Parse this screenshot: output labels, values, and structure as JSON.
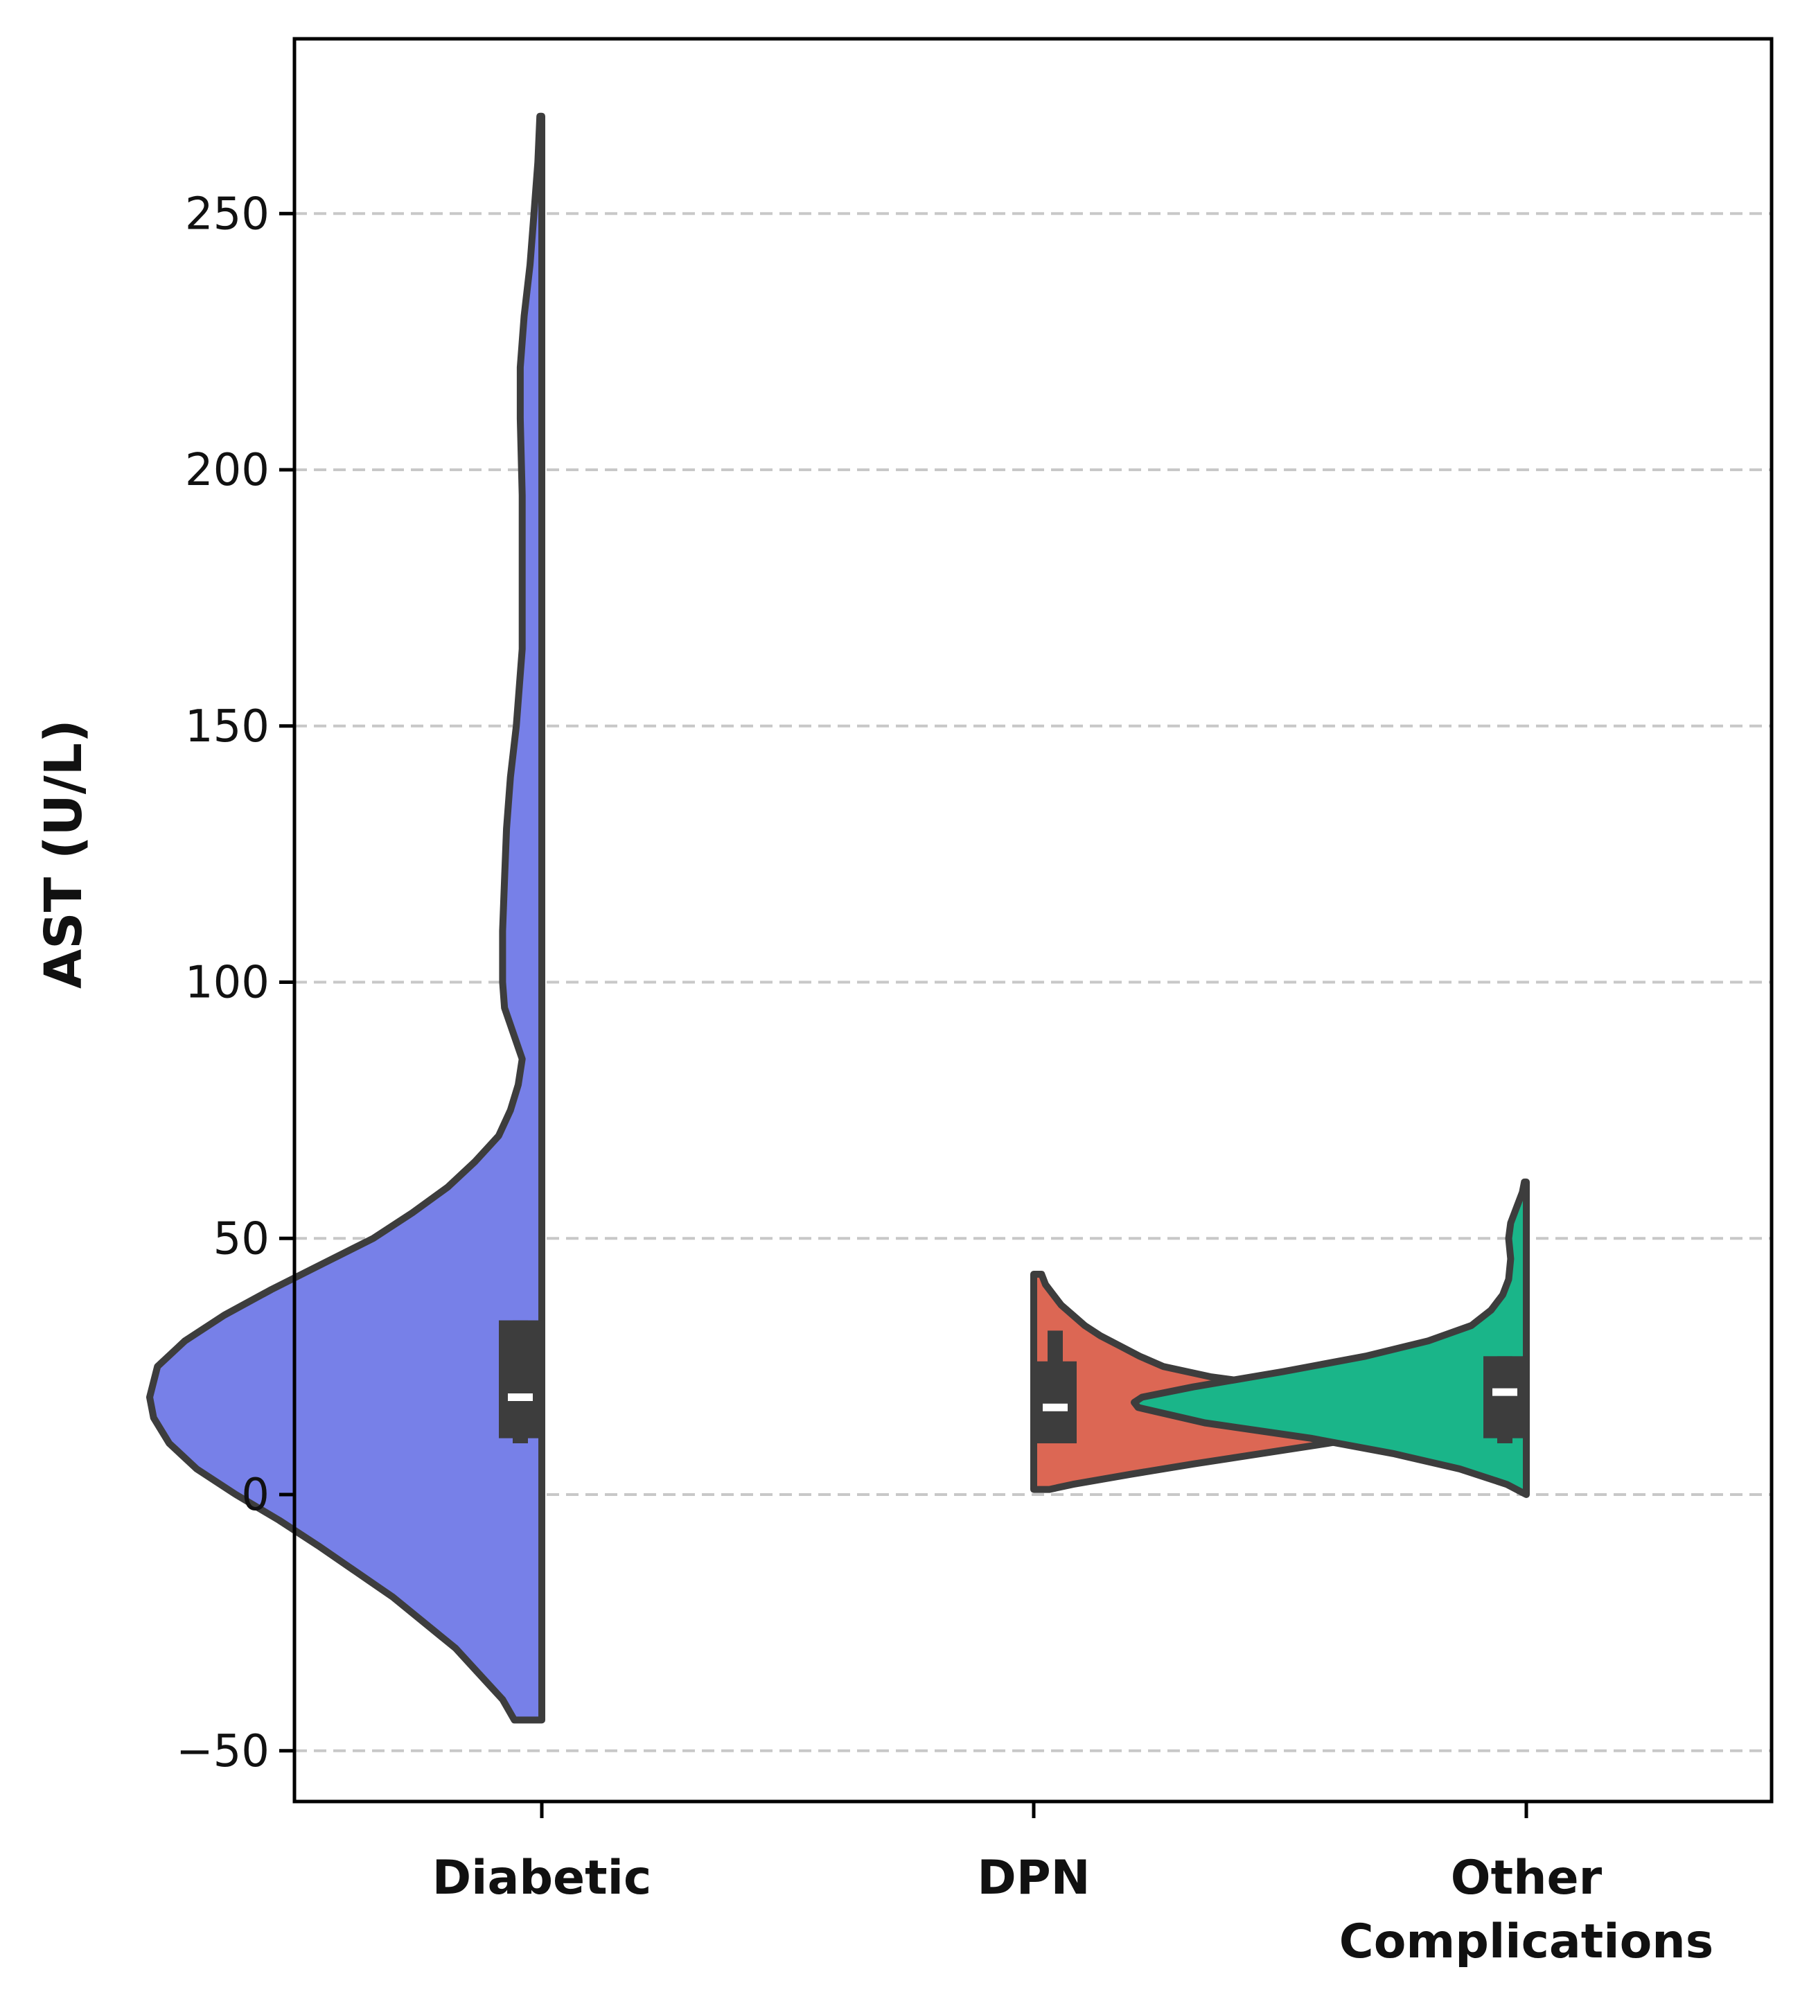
{
  "chart_data": {
    "type": "violin",
    "title": "",
    "xlabel": "",
    "ylabel": "AST (U/L)",
    "ylim": [
      -60,
      285
    ],
    "yticks": [
      -50,
      0,
      50,
      100,
      150,
      200,
      250
    ],
    "ytick_labels": [
      "−50",
      "0",
      "50",
      "100",
      "150",
      "200",
      "250"
    ],
    "grid": "horizontal dashed",
    "categories": [
      "Diabetic",
      "DPN",
      "Other Complications"
    ],
    "category_labels": [
      [
        "Diabetic"
      ],
      [
        "DPN"
      ],
      [
        "Other",
        "Complications"
      ]
    ],
    "series": [
      {
        "category": "Diabetic",
        "color": "#7780e8",
        "side": "left",
        "range": [
          -44,
          269
        ],
        "box": {
          "q1": 11,
          "median": 19,
          "q3": 34,
          "whisker_low": 10,
          "whisker_high": 34
        },
        "density_profile": [
          [
            -44,
            0.07
          ],
          [
            -40,
            0.1
          ],
          [
            -30,
            0.22
          ],
          [
            -20,
            0.38
          ],
          [
            -10,
            0.57
          ],
          [
            -5,
            0.67
          ],
          [
            0,
            0.78
          ],
          [
            5,
            0.88
          ],
          [
            10,
            0.95
          ],
          [
            15,
            0.99
          ],
          [
            19,
            1.0
          ],
          [
            25,
            0.98
          ],
          [
            30,
            0.91
          ],
          [
            35,
            0.81
          ],
          [
            40,
            0.69
          ],
          [
            45,
            0.56
          ],
          [
            50,
            0.43
          ],
          [
            55,
            0.33
          ],
          [
            60,
            0.24
          ],
          [
            65,
            0.17
          ],
          [
            70,
            0.11
          ],
          [
            75,
            0.08
          ],
          [
            80,
            0.06
          ],
          [
            85,
            0.05
          ],
          [
            95,
            0.095
          ],
          [
            100,
            0.1
          ],
          [
            110,
            0.1
          ],
          [
            120,
            0.095
          ],
          [
            130,
            0.09
          ],
          [
            140,
            0.08
          ],
          [
            150,
            0.065
          ],
          [
            165,
            0.05
          ],
          [
            180,
            0.05
          ],
          [
            195,
            0.05
          ],
          [
            210,
            0.055
          ],
          [
            220,
            0.055
          ],
          [
            230,
            0.045
          ],
          [
            240,
            0.03
          ],
          [
            250,
            0.02
          ],
          [
            260,
            0.01
          ],
          [
            269,
            0.005
          ]
        ]
      },
      {
        "category": "DPN",
        "color": "#dc6754",
        "side": "right",
        "range": [
          1,
          43
        ],
        "box": {
          "q1": 10,
          "median": 17,
          "q3": 26,
          "whisker_low": 10,
          "whisker_high": 32
        },
        "density_profile": [
          [
            1,
            0.04
          ],
          [
            2,
            0.1
          ],
          [
            4,
            0.25
          ],
          [
            6,
            0.41
          ],
          [
            8,
            0.58
          ],
          [
            10,
            0.75
          ],
          [
            12,
            0.9
          ],
          [
            14,
            0.98
          ],
          [
            15.5,
            1.0
          ],
          [
            17,
            0.97
          ],
          [
            19,
            0.84
          ],
          [
            21,
            0.64
          ],
          [
            23,
            0.45
          ],
          [
            25,
            0.33
          ],
          [
            27,
            0.27
          ],
          [
            29,
            0.22
          ],
          [
            31,
            0.17
          ],
          [
            33,
            0.13
          ],
          [
            35,
            0.1
          ],
          [
            37,
            0.07
          ],
          [
            39,
            0.05
          ],
          [
            41,
            0.03
          ],
          [
            43,
            0.02
          ]
        ]
      },
      {
        "category": "Other Complications",
        "color": "#1ab589",
        "side": "left",
        "range": [
          0,
          61
        ],
        "box": {
          "q1": 11,
          "median": 20,
          "q3": 27,
          "whisker_low": 10,
          "whisker_high": 27
        },
        "density_profile": [
          [
            0,
            0.0
          ],
          [
            2,
            0.05
          ],
          [
            5,
            0.17
          ],
          [
            8,
            0.34
          ],
          [
            11,
            0.55
          ],
          [
            14,
            0.82
          ],
          [
            17,
            0.99
          ],
          [
            18,
            1.0
          ],
          [
            19,
            0.98
          ],
          [
            21,
            0.85
          ],
          [
            24,
            0.62
          ],
          [
            27,
            0.41
          ],
          [
            30,
            0.25
          ],
          [
            33,
            0.14
          ],
          [
            36,
            0.09
          ],
          [
            39,
            0.06
          ],
          [
            42,
            0.045
          ],
          [
            46,
            0.04
          ],
          [
            50,
            0.045
          ],
          [
            53,
            0.04
          ],
          [
            56,
            0.025
          ],
          [
            59,
            0.01
          ],
          [
            61,
            0.005
          ]
        ]
      }
    ]
  }
}
